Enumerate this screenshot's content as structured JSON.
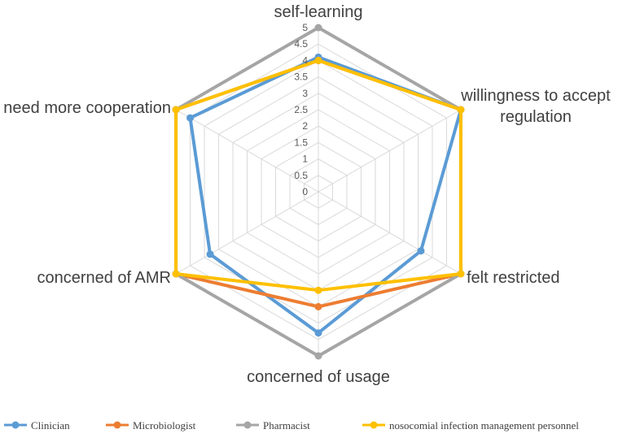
{
  "chart_data": {
    "type": "radar",
    "axes": [
      "self-learning",
      "willingness to accept regulation",
      "felt restricted",
      "concerned of usage",
      "concerned of AMR",
      "need more cooperation"
    ],
    "axis_label_lines": [
      [
        "self-learning"
      ],
      [
        "willingness to accept",
        "regulation"
      ],
      [
        "felt restricted"
      ],
      [
        "concerned of usage"
      ],
      [
        "concerned of AMR"
      ],
      [
        "need more cooperation"
      ]
    ],
    "rmin": 0,
    "rmax": 5,
    "ticks": [
      "0",
      "0.5",
      "1",
      "1.5",
      "2",
      "2.5",
      "3",
      "3.5",
      "4",
      "4.5",
      "5"
    ],
    "grid": true,
    "legend_position": "bottom",
    "series": [
      {
        "name": "Clinician",
        "color": "#5B9BD5",
        "values": [
          4.1,
          5.0,
          3.6,
          4.3,
          3.8,
          4.5
        ]
      },
      {
        "name": "Microbiologist",
        "color": "#ED7D31",
        "values": [
          4.0,
          5.0,
          5.0,
          3.5,
          5.0,
          5.0
        ]
      },
      {
        "name": "Pharmacist",
        "color": "#A5A5A5",
        "values": [
          5.0,
          5.0,
          5.0,
          5.0,
          5.0,
          5.0
        ]
      },
      {
        "name": "nosocomial infection management personnel",
        "color": "#FFC000",
        "values": [
          4.0,
          5.0,
          5.0,
          3.0,
          5.0,
          5.0
        ]
      }
    ]
  }
}
